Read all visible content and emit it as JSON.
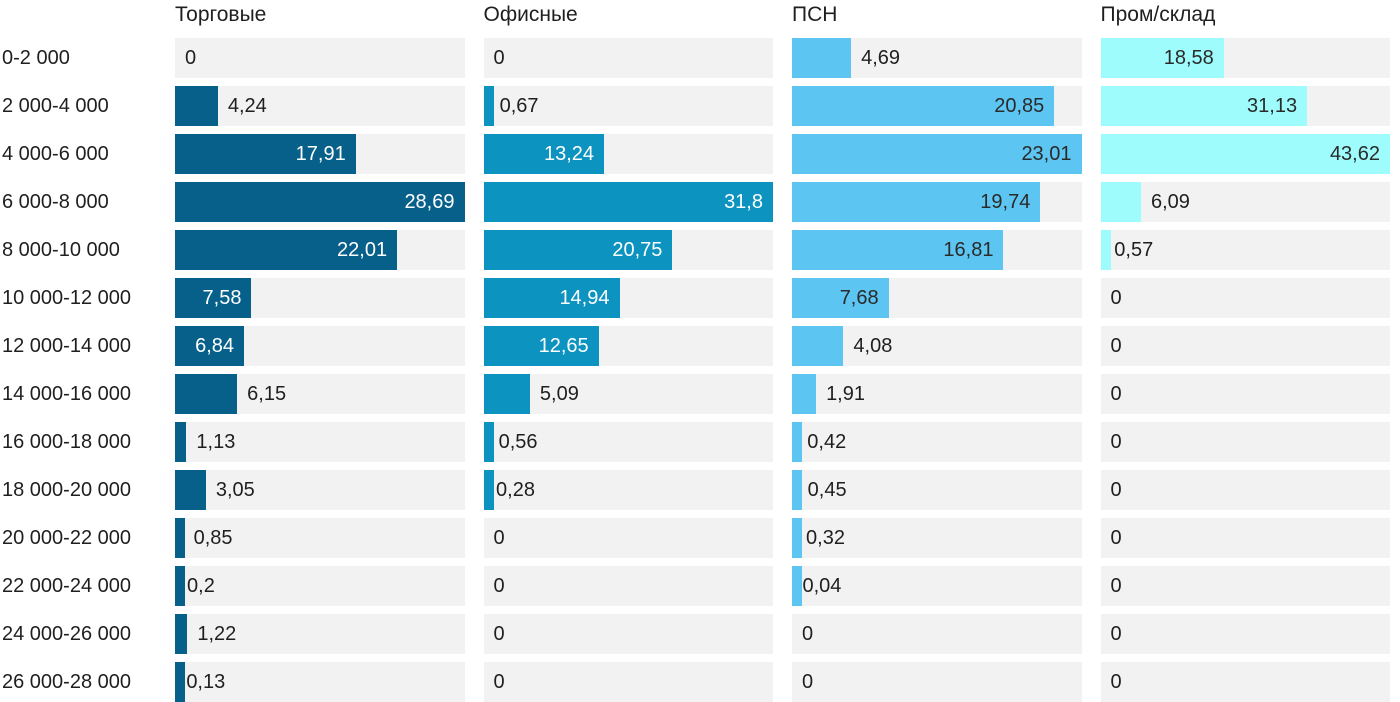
{
  "chart_data": {
    "type": "bar",
    "orientation": "horizontal",
    "legend_position": "column-headers",
    "grid": false,
    "axis_ticks": "none",
    "value_format": "decimal-comma",
    "scaling_note": "each column scaled independently to its own max value",
    "column_max": [
      28.69,
      31.8,
      23.01,
      43.62
    ],
    "track_color": "#f2f2f2",
    "text_color": "#1f1f1f",
    "categories": [
      "0-2 000",
      "2 000-4 000",
      "4 000-6 000",
      "6 000-8 000",
      "8 000-10 000",
      "10 000-12 000",
      "12 000-14 000",
      "14 000-16 000",
      "16 000-18 000",
      "18 000-20 000",
      "20 000-22 000",
      "22 000-24 000",
      "24 000-26 000",
      "26 000-28 000"
    ],
    "series": [
      {
        "name": "Торговые",
        "color": "#07608a",
        "inside_label_color": "#ffffff",
        "values": [
          0,
          4.24,
          17.91,
          28.69,
          22.01,
          7.58,
          6.84,
          6.15,
          1.13,
          3.05,
          0.85,
          0.2,
          1.22,
          0.13
        ],
        "labels": [
          "0",
          "4,24",
          "17,91",
          "28,69",
          "22,01",
          "7,58",
          "6,84",
          "6,15",
          "1,13",
          "3,05",
          "0,85",
          "0,2",
          "1,22",
          "0,13"
        ]
      },
      {
        "name": "Офисные",
        "color": "#0c93bf",
        "inside_label_color": "#ffffff",
        "values": [
          0,
          0.67,
          13.24,
          31.8,
          20.75,
          14.94,
          12.65,
          5.09,
          0.56,
          0.28,
          0,
          0,
          0,
          0
        ],
        "labels": [
          "0",
          "0,67",
          "13,24",
          "31,8",
          "20,75",
          "14,94",
          "12,65",
          "5,09",
          "0,56",
          "0,28",
          "0",
          "0",
          "0",
          "0"
        ]
      },
      {
        "name": "ПСН",
        "color": "#5cc5f2",
        "inside_label_color": "#2a2a2a",
        "values": [
          4.69,
          20.85,
          23.01,
          19.74,
          16.81,
          7.68,
          4.08,
          1.91,
          0.42,
          0.45,
          0.32,
          0.04,
          0,
          0
        ],
        "labels": [
          "4,69",
          "20,85",
          "23,01",
          "19,74",
          "16,81",
          "7,68",
          "4,08",
          "1,91",
          "0,42",
          "0,45",
          "0,32",
          "0,04",
          "0",
          "0"
        ]
      },
      {
        "name": "Пром/склад",
        "color": "#9efcfc",
        "inside_label_color": "#2a2a2a",
        "values": [
          18.58,
          31.13,
          43.62,
          6.09,
          0.57,
          0,
          0,
          0,
          0,
          0,
          0,
          0,
          0,
          0
        ],
        "labels": [
          "18,58",
          "31,13",
          "43,62",
          "6,09",
          "0,57",
          "0",
          "0",
          "0",
          "0",
          "0",
          "0",
          "0",
          "0",
          "0"
        ]
      }
    ]
  }
}
